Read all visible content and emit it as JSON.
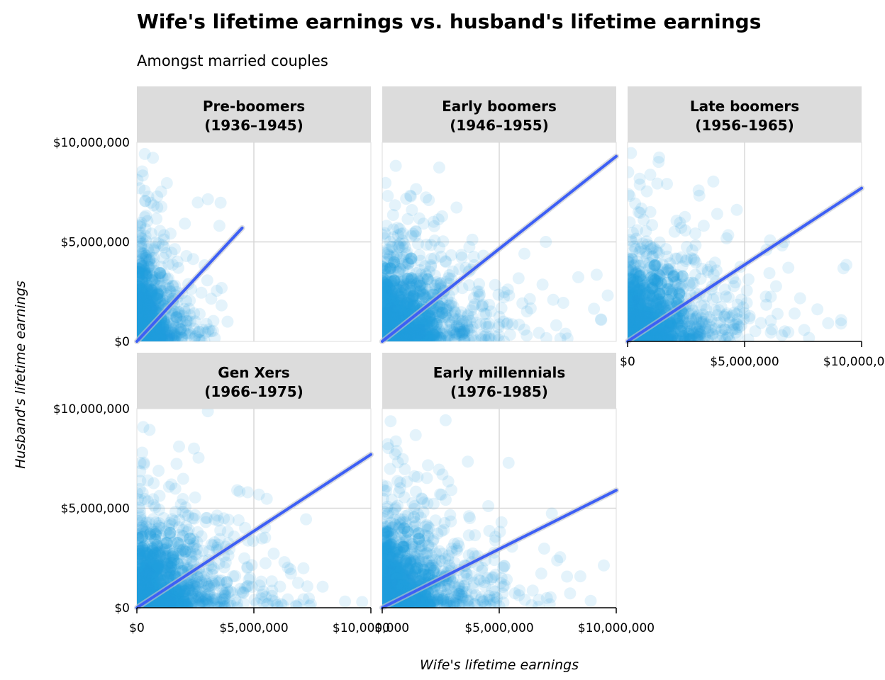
{
  "chart_data": {
    "type": "scatter",
    "title": "Wife's lifetime earnings vs. husband's lifetime earnings",
    "subtitle": "Amongst married couples",
    "xlabel": "Wife's lifetime earnings",
    "ylabel": "Husband's lifetime earnings",
    "xlim": [
      0,
      10000000
    ],
    "ylim": [
      0,
      10000000
    ],
    "x_ticks": [
      0,
      5000000,
      10000000
    ],
    "y_ticks": [
      0,
      5000000,
      10000000
    ],
    "x_tick_labels": [
      "$0",
      "$5,000,000",
      "$10,000,000"
    ],
    "y_tick_labels": [
      "$0",
      "$5,000,000",
      "$10,000,000"
    ],
    "point_color": "#1f9fdc",
    "trend_color": "#3d5ff5",
    "strip_color": "#dcdcdc",
    "grid": true,
    "panels": [
      {
        "name": "Pre-boomers",
        "years": "(1936–1945)",
        "trend": {
          "x": [
            0,
            4500000
          ],
          "y": [
            0,
            5700000
          ]
        },
        "x_range": 4600000,
        "y_range": 9800000,
        "density": 900
      },
      {
        "name": "Early boomers",
        "years": "(1946–1955)",
        "trend": {
          "x": [
            0,
            10000000
          ],
          "y": [
            0,
            9300000
          ]
        },
        "x_range": 10000000,
        "y_range": 10000000,
        "density": 1000
      },
      {
        "name": "Late boomers",
        "years": "(1956–1965)",
        "trend": {
          "x": [
            0,
            10000000
          ],
          "y": [
            0,
            7700000
          ]
        },
        "x_range": 10000000,
        "y_range": 10000000,
        "density": 1000
      },
      {
        "name": "Gen Xers",
        "years": "(1966–1975)",
        "trend": {
          "x": [
            0,
            10000000
          ],
          "y": [
            0,
            7700000
          ]
        },
        "x_range": 10000000,
        "y_range": 10000000,
        "density": 1000
      },
      {
        "name": "Early millennials",
        "years": "(1976-1985)",
        "trend": {
          "x": [
            0,
            10000000
          ],
          "y": [
            0,
            5900000
          ]
        },
        "x_range": 10000000,
        "y_range": 10000000,
        "density": 1000
      }
    ]
  }
}
